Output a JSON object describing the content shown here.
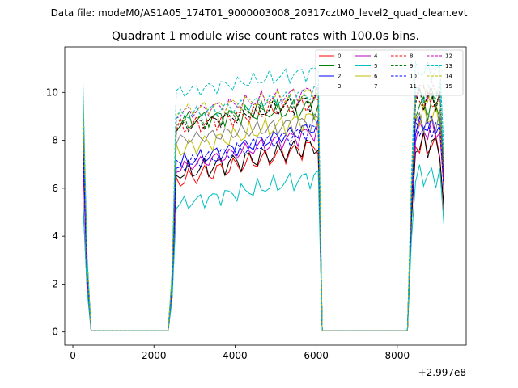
{
  "page": {
    "super_title": "Data file: modeM0/AS1A05_174T01_9000003008_20317cztM0_level2_quad_clean.evt"
  },
  "chart_data": {
    "type": "line",
    "title": "Quadrant 1 module wise count rates with 100.0s bins.",
    "xlabel": "",
    "ylabel": "",
    "x_offset_label": "+2.997e8",
    "xlim": [
      -200,
      9700
    ],
    "ylim": [
      -0.55,
      11.9
    ],
    "x_ticks": [
      0,
      2000,
      4000,
      6000,
      8000
    ],
    "x_tick_labels": [
      "0",
      "2000",
      "4000",
      "6000",
      "8000"
    ],
    "y_ticks": [
      0,
      2,
      4,
      6,
      8,
      10
    ],
    "y_tick_labels": [
      "0",
      "2",
      "4",
      "6",
      "8",
      "10"
    ],
    "grid": false,
    "legend_position": "top-right",
    "legend_columns": 4,
    "x": [
      250,
      350,
      450,
      2350,
      2450,
      2550,
      2650,
      2750,
      2850,
      2950,
      3050,
      3150,
      3250,
      3350,
      3450,
      3550,
      3650,
      3750,
      3850,
      3950,
      4050,
      4150,
      4250,
      4350,
      4450,
      4550,
      4650,
      4750,
      4850,
      4950,
      5050,
      5150,
      5250,
      5350,
      5450,
      5550,
      5650,
      5750,
      5850,
      5950,
      6050,
      6150,
      6250,
      8250,
      8350,
      8450,
      8550,
      8650,
      8750,
      8850,
      8950,
      9050,
      9150
    ],
    "series": [
      {
        "name": "0",
        "color": "#ff0000",
        "dashed": false,
        "start": 5.5,
        "mid": 1.8,
        "level1": 6.3,
        "amp1": 0.5,
        "level2": 7.8,
        "amp2": 0.5,
        "end": 5.0,
        "phase": 0.3
      },
      {
        "name": "1",
        "color": "#008000",
        "dashed": false,
        "start": 9.9,
        "mid": 3.0,
        "level1": 8.8,
        "amp1": 0.35,
        "level2": 9.4,
        "amp2": 0.6,
        "end": 6.0,
        "phase": 1.1
      },
      {
        "name": "2",
        "color": "#0000ff",
        "dashed": false,
        "start": 8.0,
        "mid": 2.6,
        "level1": 7.0,
        "amp1": 0.4,
        "level2": 8.6,
        "amp2": 0.4,
        "end": 6.0,
        "phase": 2.2
      },
      {
        "name": "3",
        "color": "#000000",
        "dashed": false,
        "start": 7.5,
        "mid": 2.4,
        "level1": 6.6,
        "amp1": 0.5,
        "level2": 7.8,
        "amp2": 0.6,
        "end": 5.3,
        "phase": 0.7
      },
      {
        "name": "4",
        "color": "#bf00bf",
        "dashed": false,
        "start": 7.0,
        "mid": 2.3,
        "level1": 6.8,
        "amp1": 0.3,
        "level2": 8.4,
        "amp2": 0.5,
        "end": 6.0,
        "phase": 1.9
      },
      {
        "name": "5",
        "color": "#00bfbf",
        "dashed": false,
        "start": 5.4,
        "mid": 1.8,
        "level1": 5.3,
        "amp1": 0.35,
        "level2": 6.5,
        "amp2": 0.5,
        "end": 4.5,
        "phase": 2.8
      },
      {
        "name": "6",
        "color": "#bfbf00",
        "dashed": false,
        "start": 8.5,
        "mid": 2.8,
        "level1": 7.6,
        "amp1": 0.5,
        "level2": 9.0,
        "amp2": 0.5,
        "end": 6.5,
        "phase": 0.1
      },
      {
        "name": "7",
        "color": "#808080",
        "dashed": false,
        "start": 8.2,
        "mid": 2.7,
        "level1": 8.0,
        "amp1": 0.3,
        "level2": 8.8,
        "amp2": 0.5,
        "end": 6.3,
        "phase": 3.4
      },
      {
        "name": "8",
        "color": "#ff0000",
        "dashed": true,
        "start": 9.0,
        "mid": 2.9,
        "level1": 8.5,
        "amp1": 0.4,
        "level2": 9.6,
        "amp2": 0.4,
        "end": 6.0,
        "phase": 4.1
      },
      {
        "name": "9",
        "color": "#008000",
        "dashed": true,
        "start": 9.5,
        "mid": 3.0,
        "level1": 8.6,
        "amp1": 0.35,
        "level2": 9.8,
        "amp2": 0.4,
        "end": 6.6,
        "phase": 2.5
      },
      {
        "name": "10",
        "color": "#0000ff",
        "dashed": true,
        "start": 7.8,
        "mid": 2.5,
        "level1": 6.9,
        "amp1": 0.4,
        "level2": 8.5,
        "amp2": 0.4,
        "end": 5.9,
        "phase": 5.0
      },
      {
        "name": "11",
        "color": "#000000",
        "dashed": true,
        "start": 9.4,
        "mid": 3.0,
        "level1": 8.5,
        "amp1": 0.3,
        "level2": 9.7,
        "amp2": 0.5,
        "end": 6.6,
        "phase": 3.0
      },
      {
        "name": "12",
        "color": "#bf00bf",
        "dashed": true,
        "start": 9.6,
        "mid": 3.0,
        "level1": 9.1,
        "amp1": 0.35,
        "level2": 10.1,
        "amp2": 0.4,
        "end": 7.0,
        "phase": 1.5
      },
      {
        "name": "13",
        "color": "#00bfbf",
        "dashed": true,
        "start": 10.4,
        "mid": 3.3,
        "level1": 10.0,
        "amp1": 0.3,
        "level2": 10.9,
        "amp2": 0.4,
        "end": 7.6,
        "phase": 4.6
      },
      {
        "name": "14",
        "color": "#bfbf00",
        "dashed": true,
        "start": 9.7,
        "mid": 3.1,
        "level1": 9.2,
        "amp1": 0.3,
        "level2": 10.0,
        "amp2": 0.4,
        "end": 7.0,
        "phase": 0.9
      },
      {
        "name": "15",
        "color": "#00bfbf",
        "dashed": true,
        "start": 9.6,
        "mid": 3.0,
        "level1": 9.0,
        "amp1": 0.3,
        "level2": 10.0,
        "amp2": 0.4,
        "end": 6.8,
        "phase": 3.7
      }
    ]
  }
}
